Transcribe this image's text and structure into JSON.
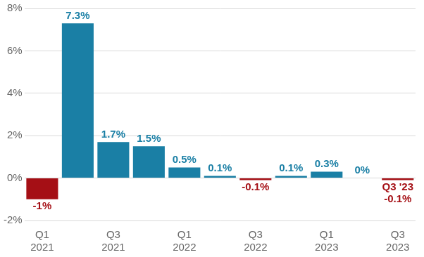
{
  "chart_data": {
    "type": "bar",
    "categories": [
      "Q1 2021",
      null,
      "Q3 2021",
      null,
      "Q1 2022",
      null,
      "Q3 2022",
      null,
      "Q1 2023",
      null,
      "Q3 2023"
    ],
    "values": [
      -1,
      7.3,
      1.7,
      1.5,
      0.5,
      0.1,
      -0.1,
      0.1,
      0.3,
      0,
      -0.1
    ],
    "value_labels": [
      "-1%",
      "7.3%",
      "1.7%",
      "1.5%",
      "0.5%",
      "0.1%",
      "-0.1%",
      "0.1%",
      "0.3%",
      "0%",
      "-0.1%"
    ],
    "colors": [
      "#a50f15",
      "#1a7fa5",
      "#1a7fa5",
      "#1a7fa5",
      "#1a7fa5",
      "#1a7fa5",
      "#a50f15",
      "#1a7fa5",
      "#1a7fa5",
      "#1a7fa5",
      "#a50f15"
    ],
    "annotation": {
      "text": "Q3 '23",
      "category": "Q3 2023"
    },
    "data_labels": true,
    "ylim": [
      -2,
      8
    ],
    "yticks": [
      {
        "value": -2,
        "label": "-2%"
      },
      {
        "value": 0,
        "label": "0%"
      },
      {
        "value": 2,
        "label": "2%"
      },
      {
        "value": 4,
        "label": "4%"
      },
      {
        "value": 6,
        "label": "6%"
      },
      {
        "value": 8,
        "label": "8%"
      }
    ],
    "grid": true
  }
}
